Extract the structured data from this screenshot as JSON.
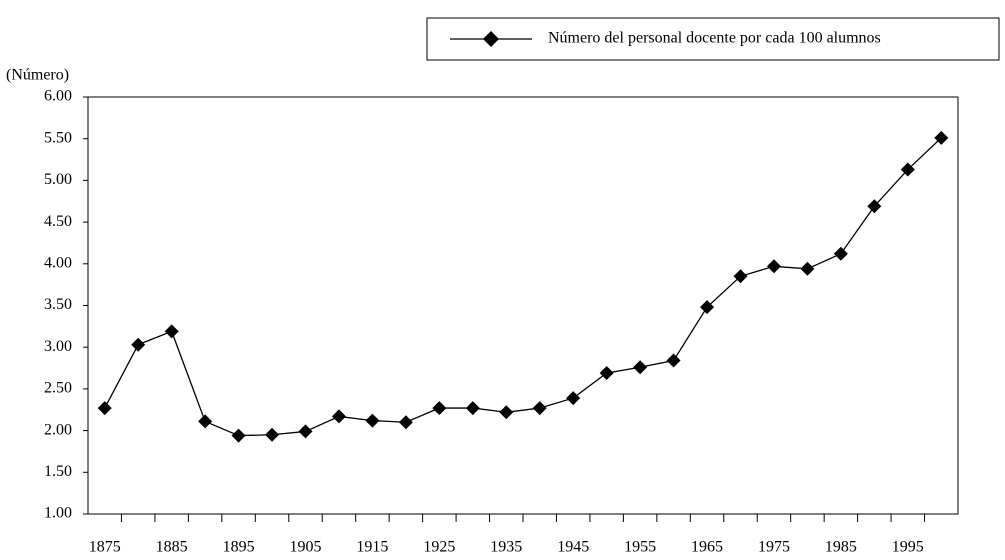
{
  "chart_data": {
    "type": "line",
    "y_label": "(Número)",
    "categories": [
      1875,
      null,
      1885,
      null,
      1895,
      null,
      1905,
      null,
      1915,
      null,
      1925,
      null,
      1935,
      null,
      1945,
      null,
      1955,
      null,
      1965,
      null,
      1975,
      null,
      1985,
      null,
      1995,
      null
    ],
    "series": [
      {
        "name": "Número del personal docente por cada 100 alumnos",
        "color": "#000000",
        "values": [
          2.27,
          3.03,
          3.19,
          2.11,
          1.94,
          1.95,
          1.99,
          2.17,
          2.12,
          2.1,
          2.27,
          2.27,
          2.22,
          2.27,
          2.39,
          2.69,
          2.76,
          2.84,
          3.48,
          3.85,
          3.97,
          3.94,
          4.12,
          4.69,
          5.13,
          5.51
        ]
      }
    ],
    "ylim": [
      1,
      6
    ],
    "yticks": [
      {
        "value": 1,
        "label": "1.00"
      },
      {
        "value": 1.5,
        "label": "1.50"
      },
      {
        "value": 2,
        "label": "2.00"
      },
      {
        "value": 2.5,
        "label": "2.50"
      },
      {
        "value": 3,
        "label": "3.00"
      },
      {
        "value": 3.5,
        "label": "3.50"
      },
      {
        "value": 4,
        "label": "4.00"
      },
      {
        "value": 4.5,
        "label": "4.50"
      },
      {
        "value": 5,
        "label": "5.00"
      },
      {
        "value": 5.5,
        "label": "5.50"
      },
      {
        "value": 6,
        "label": "6.00"
      }
    ],
    "grid": false,
    "legend": "top-right"
  }
}
